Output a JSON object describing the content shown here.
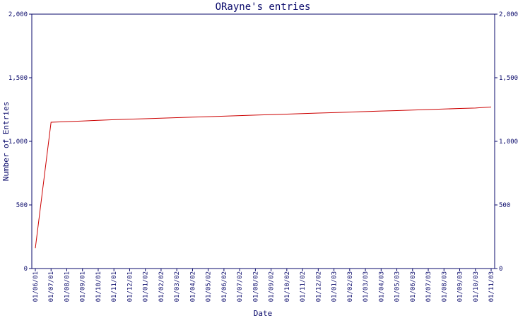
{
  "chart_data": {
    "type": "line",
    "title": "ORayne's entries",
    "xlabel": "Date",
    "ylabel": "Number of Entries",
    "ylim": [
      0,
      2000
    ],
    "y_ticks": [
      "0",
      "500",
      "1,000",
      "1,500",
      "2,000"
    ],
    "grid": false,
    "categories": [
      "01/06/01",
      "01/07/01",
      "01/08/01",
      "01/09/01",
      "01/10/01",
      "01/11/01",
      "01/12/01",
      "01/01/02",
      "01/02/02",
      "01/03/02",
      "01/04/02",
      "01/05/02",
      "01/06/02",
      "01/07/02",
      "01/08/02",
      "01/09/02",
      "01/10/02",
      "01/11/02",
      "01/12/02",
      "01/01/03",
      "01/02/03",
      "01/03/03",
      "01/04/03",
      "01/05/03",
      "01/06/03",
      "01/07/03",
      "01/08/03",
      "01/09/03",
      "01/10/03",
      "01/11/03"
    ],
    "series": [
      {
        "color": "#cc0000",
        "values": [
          160,
          1150,
          1155,
          1160,
          1165,
          1170,
          1174,
          1178,
          1182,
          1186,
          1190,
          1194,
          1198,
          1202,
          1206,
          1210,
          1214,
          1218,
          1222,
          1226,
          1230,
          1234,
          1238,
          1242,
          1246,
          1250,
          1254,
          1258,
          1262,
          1270
        ]
      }
    ],
    "colors": {
      "axis": "#0a0a6b",
      "line": "#cc0000"
    }
  }
}
